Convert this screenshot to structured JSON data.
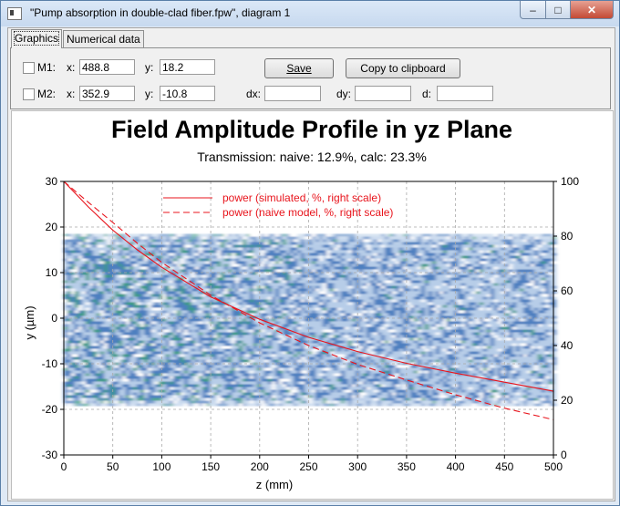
{
  "window": {
    "title": "\"Pump absorption in double-clad fiber.fpw\", diagram 1",
    "minimize": "–",
    "maximize": "□",
    "close": "✕"
  },
  "tabs": [
    "Graphics",
    "Numerical data"
  ],
  "markers": {
    "m1": {
      "label": "M1:",
      "x_label": "x:",
      "x": "488.8",
      "y_label": "y:",
      "y": "18.2"
    },
    "m2": {
      "label": "M2:",
      "x_label": "x:",
      "x": "352.9",
      "y_label": "y:",
      "y": "-10.8"
    },
    "dx_label": "dx:",
    "dy_label": "dy:",
    "d_label": "d:"
  },
  "buttons": {
    "save": "Save",
    "copy": "Copy to clipboard"
  },
  "chart_data": {
    "type": "line",
    "title": "Field Amplitude Profile in yz Plane",
    "subtitle": "Transmission: naive: 12.9%, calc: 23.3%",
    "xlabel": "z (mm)",
    "ylabel": "y (µm)",
    "xlim": [
      0,
      500
    ],
    "ylim": [
      -30,
      30
    ],
    "y2lim": [
      0,
      100
    ],
    "xticks": [
      "0",
      "50",
      "100",
      "150",
      "200",
      "250",
      "300",
      "350",
      "400",
      "450",
      "500"
    ],
    "yticks": [
      "30",
      "20",
      "10",
      "0",
      "-10",
      "-20",
      "-30"
    ],
    "y2ticks": [
      "100",
      "80",
      "60",
      "40",
      "20",
      "0"
    ],
    "grid": true,
    "legend_position": "top-center",
    "heatmap": {
      "z_range": [
        0,
        500
      ],
      "y_range": [
        -19,
        18.5
      ],
      "colors": [
        "#ffffff",
        "#b7cde8",
        "#4d7fc0",
        "#3a9a86"
      ]
    },
    "series": [
      {
        "name": "power (simulated, %, right scale)",
        "style": "solid",
        "color": "#e8141c",
        "x": [
          0,
          25,
          50,
          75,
          100,
          150,
          200,
          250,
          300,
          350,
          400,
          450,
          500
        ],
        "y": [
          100,
          90.7,
          82.2,
          75.0,
          68.6,
          57.8,
          49.6,
          43.0,
          37.8,
          33.5,
          29.9,
          26.6,
          23.3
        ]
      },
      {
        "name": "power (naive model, %, right scale)",
        "style": "dashed",
        "color": "#e8141c",
        "x": [
          0,
          25,
          50,
          75,
          100,
          150,
          200,
          250,
          300,
          350,
          400,
          450,
          500
        ],
        "y": [
          100,
          92.4,
          85.0,
          77.4,
          70.4,
          58.4,
          48.3,
          40.0,
          33.1,
          27.4,
          22.0,
          17.1,
          12.9
        ]
      }
    ]
  }
}
